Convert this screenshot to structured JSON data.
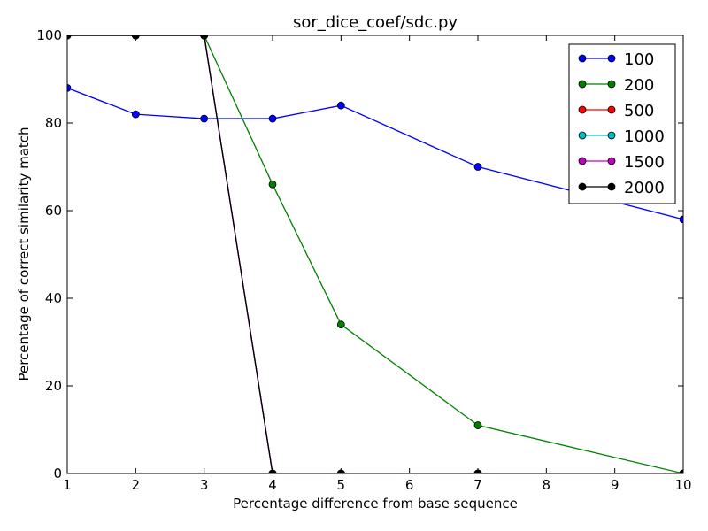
{
  "chart_data": {
    "type": "line",
    "title": "sor_dice_coef/sdc.py",
    "xlabel": "Percentage difference from base sequence",
    "ylabel": "Percentage of correct similarity match",
    "xlim": [
      1,
      10
    ],
    "ylim": [
      0,
      100
    ],
    "xticks": [
      "1",
      "2",
      "3",
      "4",
      "5",
      "6",
      "7",
      "8",
      "9",
      "10"
    ],
    "yticks": [
      "0",
      "20",
      "40",
      "60",
      "80",
      "100"
    ],
    "grid": false,
    "legend_position": "top-right",
    "x": [
      1,
      2,
      3,
      4,
      5,
      7,
      10
    ],
    "series": [
      {
        "name": "100",
        "color": "#0000ff",
        "values": [
          88,
          82,
          81,
          81,
          84,
          70,
          58
        ]
      },
      {
        "name": "200",
        "color": "#008000",
        "values": [
          100,
          100,
          100,
          66,
          34,
          11,
          0
        ]
      },
      {
        "name": "500",
        "color": "#ff0000",
        "values": [
          100,
          100,
          100,
          0,
          0,
          0,
          0
        ]
      },
      {
        "name": "1000",
        "color": "#00bfbf",
        "values": [
          100,
          100,
          100,
          0,
          0,
          0,
          0
        ]
      },
      {
        "name": "1500",
        "color": "#bf00bf",
        "values": [
          100,
          100,
          100,
          0,
          0,
          0,
          0
        ]
      },
      {
        "name": "2000",
        "color": "#000000",
        "values": [
          100,
          100,
          100,
          0,
          0,
          0,
          0
        ]
      }
    ]
  }
}
